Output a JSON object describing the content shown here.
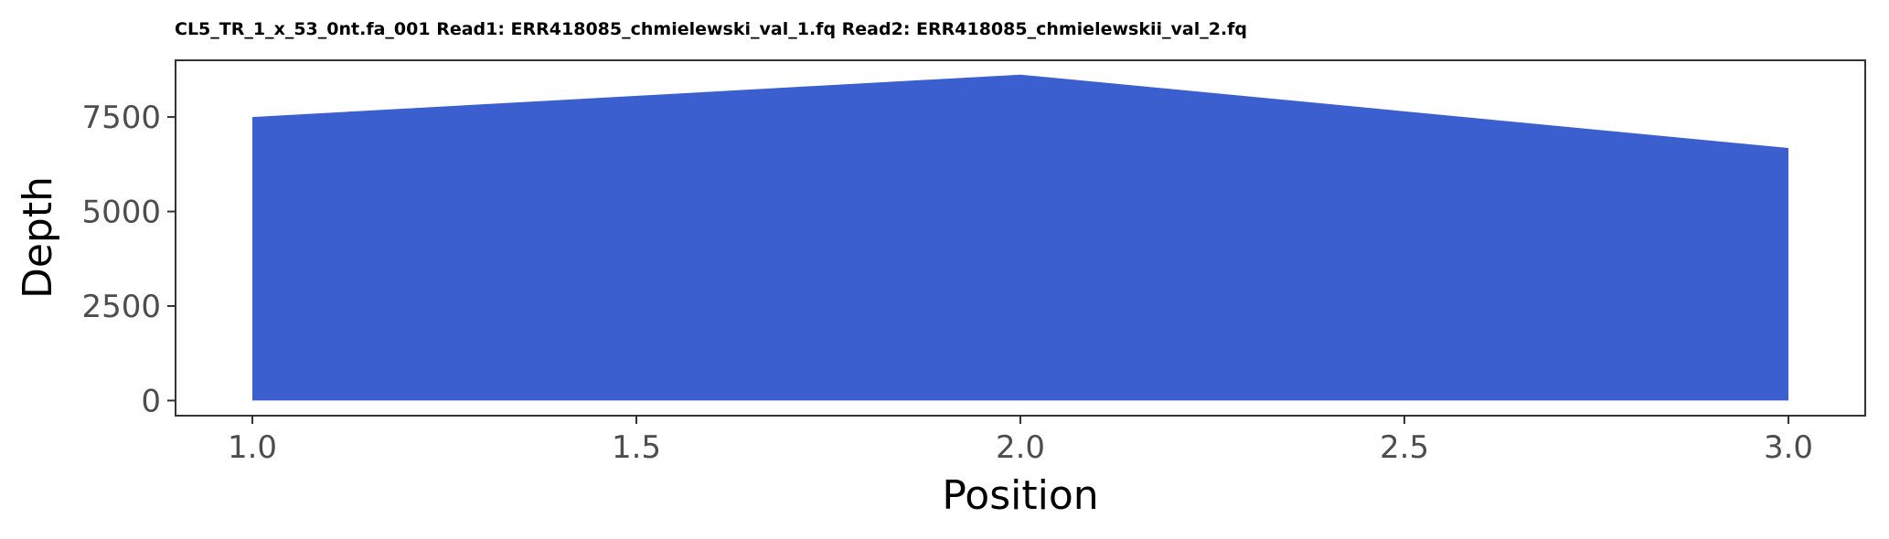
{
  "chart_data": {
    "type": "area",
    "title": "CL5_TR_1_x_53_0nt.fa_001 Read1: ERR418085_chmielewski_val_1.fq Read2: ERR418085_chmielewskii_val_2.fq",
    "xlabel": "Position",
    "ylabel": "Depth",
    "x": [
      1.0,
      2.0,
      3.0
    ],
    "series": [
      {
        "values": [
          7500,
          8620,
          6680
        ]
      }
    ],
    "xlim": [
      0.9,
      3.1
    ],
    "ylim": [
      -400,
      9000
    ],
    "x_ticks": [
      1.0,
      1.5,
      2.0,
      2.5,
      3.0
    ],
    "x_tick_labels": [
      "1.0",
      "1.5",
      "2.0",
      "2.5",
      "3.0"
    ],
    "y_ticks": [
      0,
      2500,
      5000,
      7500
    ],
    "y_tick_labels": [
      "0",
      "2500",
      "5000",
      "7500"
    ],
    "fill_color": "#3b5fce",
    "grid": false,
    "legend": "none"
  }
}
